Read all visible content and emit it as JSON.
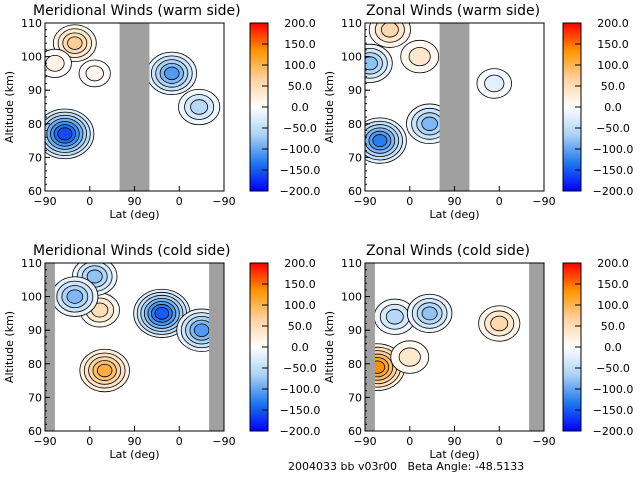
{
  "footer": {
    "text": "2004033 bb v03r00   Beta Angle: -48.5133"
  },
  "colorbar": {
    "ticks": [
      "200.0",
      "150.0",
      "100.0",
      "50.0",
      "0.0",
      "-50.0",
      "-100.0",
      "-150.0",
      "-200.0"
    ],
    "range": [
      -200,
      200
    ],
    "stops": [
      "#0000ff",
      "#1e78f0",
      "#aad2f5",
      "#ffffff",
      "#ffd2a0",
      "#ff9600",
      "#ff0000"
    ]
  },
  "chart_data": [
    {
      "type": "heatmap",
      "title": "Meridional Winds (warm side)",
      "xlabel": "Lat (deg)",
      "ylabel": "Altitude (km)",
      "xticks": [
        "-90",
        "0",
        "90",
        "0",
        "-90"
      ],
      "yticks": [
        "60",
        "70",
        "80",
        "90",
        "100",
        "110"
      ],
      "ylim": [
        60,
        110
      ],
      "colorbar_range": [
        -200,
        200
      ],
      "no_data_band_lat": [
        60,
        120
      ],
      "features": [
        {
          "lat": -50,
          "alt": 77,
          "value": -180
        },
        {
          "lat": -30,
          "alt": 104,
          "value": 90
        },
        {
          "lat": -70,
          "alt": 98,
          "value": 30
        },
        {
          "lat": 10,
          "alt": 95,
          "value": 20
        },
        {
          "lat": 165,
          "alt": 95,
          "value": -130
        },
        {
          "lat": 220,
          "alt": 85,
          "value": -80
        }
      ]
    },
    {
      "type": "heatmap",
      "title": "Zonal Winds (warm side)",
      "xlabel": "Lat (deg)",
      "ylabel": "Altitude (km)",
      "xticks": [
        "-90",
        "0",
        "90",
        "0",
        "-90"
      ],
      "yticks": [
        "60",
        "70",
        "80",
        "90",
        "100",
        "110"
      ],
      "ylim": [
        60,
        110
      ],
      "colorbar_range": [
        -200,
        200
      ],
      "no_data_band_lat": [
        60,
        120
      ],
      "features": [
        {
          "lat": -60,
          "alt": 75,
          "value": -150
        },
        {
          "lat": 40,
          "alt": 80,
          "value": -110
        },
        {
          "lat": -40,
          "alt": 108,
          "value": 80
        },
        {
          "lat": 20,
          "alt": 100,
          "value": 60
        },
        {
          "lat": -80,
          "alt": 98,
          "value": -100
        },
        {
          "lat": 170,
          "alt": 92,
          "value": -40
        }
      ]
    },
    {
      "type": "heatmap",
      "title": "Meridional Winds (cold side)",
      "xlabel": "Lat (deg)",
      "ylabel": "Altitude (km)",
      "xticks": [
        "-90",
        "0",
        "90",
        "0",
        "-90"
      ],
      "yticks": [
        "60",
        "70",
        "80",
        "90",
        "100",
        "110"
      ],
      "ylim": [
        60,
        110
      ],
      "colorbar_range": [
        -200,
        200
      ],
      "no_data_band_lat": [
        [
          -90,
          -70
        ],
        [
          240,
          270
        ]
      ],
      "features": [
        {
          "lat": 30,
          "alt": 78,
          "value": 130
        },
        {
          "lat": 20,
          "alt": 96,
          "value": 70
        },
        {
          "lat": 10,
          "alt": 106,
          "value": -100
        },
        {
          "lat": -30,
          "alt": 100,
          "value": -110
        },
        {
          "lat": 145,
          "alt": 95,
          "value": -170
        },
        {
          "lat": 225,
          "alt": 90,
          "value": -130
        }
      ]
    },
    {
      "type": "heatmap",
      "title": "Zonal Winds (cold side)",
      "xlabel": "Lat (deg)",
      "ylabel": "Altitude (km)",
      "xticks": [
        "-90",
        "0",
        "90",
        "0",
        "-90"
      ],
      "yticks": [
        "60",
        "70",
        "80",
        "90",
        "100",
        "110"
      ],
      "ylim": [
        60,
        110
      ],
      "colorbar_range": [
        -200,
        200
      ],
      "no_data_band_lat": [
        [
          -90,
          -70
        ],
        [
          240,
          270
        ]
      ],
      "features": [
        {
          "lat": -65,
          "alt": 79,
          "value": 160
        },
        {
          "lat": 0,
          "alt": 82,
          "value": 60
        },
        {
          "lat": -30,
          "alt": 94,
          "value": -80
        },
        {
          "lat": 40,
          "alt": 95,
          "value": -100
        },
        {
          "lat": 180,
          "alt": 92,
          "value": 80
        }
      ]
    }
  ]
}
